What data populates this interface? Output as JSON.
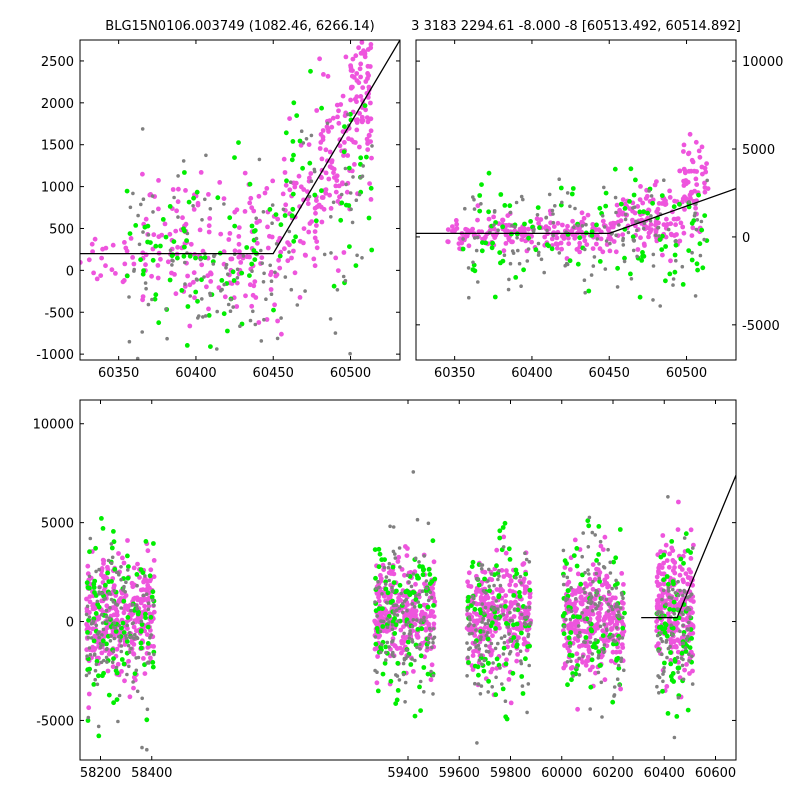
{
  "figure": {
    "title_left": "BLG15N0106.003749 (1082.46, 6266.14)",
    "title_right": "3 3183 2294.61 -8.000 -8 [60513.492, 60514.892]"
  },
  "colors": {
    "pink": "#ee55dd",
    "green": "#00ee00",
    "grey": "#808080",
    "model": "#000000"
  },
  "chart_data": [
    {
      "id": "top-left",
      "type": "scatter",
      "title": "BLG15N0106.003749 (1082.46, 6266.14)",
      "xlim": [
        60325,
        60532
      ],
      "ylim": [
        -1070,
        2750
      ],
      "xticks": [
        60350,
        60400,
        60450,
        60500
      ],
      "yticks": [
        -1000,
        -500,
        0,
        500,
        1000,
        1500,
        2000,
        2500
      ],
      "yaxis_side": "left",
      "series": [
        {
          "color": "pink",
          "segments": [
            {
              "x0": 60325,
              "x1": 60360,
              "ymean": 150,
              "sd": 180,
              "n": 25
            },
            {
              "x0": 60365,
              "x1": 60455,
              "ymean": 300,
              "sd": 400,
              "n": 170
            },
            {
              "x0": 60455,
              "x1": 60480,
              "ymean": 700,
              "sd": 420,
              "n": 60
            },
            {
              "x0": 60480,
              "x1": 60500,
              "ymean": 1300,
              "sd": 450,
              "n": 80
            },
            {
              "x0": 60500,
              "x1": 60514,
              "ymean": 2000,
              "sd": 450,
              "n": 90
            }
          ]
        },
        {
          "color": "green",
          "segments": [
            {
              "x0": 60355,
              "x1": 60455,
              "ymean": 200,
              "sd": 600,
              "n": 80
            },
            {
              "x0": 60455,
              "x1": 60514,
              "ymean": 900,
              "sd": 700,
              "n": 45
            }
          ]
        },
        {
          "color": "grey",
          "segments": [
            {
              "x0": 60355,
              "x1": 60455,
              "ymean": 0,
              "sd": 550,
              "n": 100
            },
            {
              "x0": 60455,
              "x1": 60514,
              "ymean": 700,
              "sd": 700,
              "n": 45
            }
          ]
        }
      ],
      "model": [
        [
          60325,
          200
        ],
        [
          60450,
          200
        ],
        [
          60532,
          2750
        ]
      ]
    },
    {
      "id": "top-right",
      "type": "scatter",
      "title": "3 3183 2294.61 -8.000 -8 [60513.492, 60514.892]",
      "xlim": [
        60325,
        60532
      ],
      "ylim": [
        -7000,
        11200
      ],
      "xticks": [
        60350,
        60400,
        60450,
        60500
      ],
      "yticks": [
        -5000,
        0,
        5000,
        10000
      ],
      "yaxis_side": "right",
      "series": [
        {
          "color": "pink",
          "segments": [
            {
              "x0": 60345,
              "x1": 60455,
              "ymean": 200,
              "sd": 500,
              "n": 220
            },
            {
              "x0": 60455,
              "x1": 60495,
              "ymean": 1000,
              "sd": 900,
              "n": 110
            },
            {
              "x0": 60495,
              "x1": 60514,
              "ymean": 2500,
              "sd": 1500,
              "n": 70
            }
          ]
        },
        {
          "color": "green",
          "segments": [
            {
              "x0": 60355,
              "x1": 60514,
              "ymean": 0,
              "sd": 1700,
              "n": 110
            }
          ]
        },
        {
          "color": "grey",
          "segments": [
            {
              "x0": 60355,
              "x1": 60514,
              "ymean": 0,
              "sd": 1500,
              "n": 140
            }
          ]
        }
      ],
      "model": [
        [
          60325,
          200
        ],
        [
          60450,
          200
        ],
        [
          60532,
          2750
        ]
      ]
    },
    {
      "id": "bottom",
      "type": "scatter",
      "xlim": [
        58120,
        60680
      ],
      "ylim": [
        -7000,
        11200
      ],
      "xticks": [
        58200,
        58400,
        59400,
        59600,
        59800,
        60000,
        60200,
        60400,
        60600
      ],
      "yticks": [
        -5000,
        0,
        5000,
        10000
      ],
      "yaxis_side": "left",
      "series": [
        {
          "color": "pink",
          "seasons": [
            {
              "x0": 58145,
              "x1": 58410,
              "ymean": 300,
              "sd": 1400,
              "n": 340
            },
            {
              "x0": 59270,
              "x1": 59505,
              "ymean": 300,
              "sd": 1400,
              "n": 300
            },
            {
              "x0": 59630,
              "x1": 59880,
              "ymean": 200,
              "sd": 1300,
              "n": 300
            },
            {
              "x0": 60005,
              "x1": 60245,
              "ymean": 300,
              "sd": 1400,
              "n": 300
            },
            {
              "x0": 60370,
              "x1": 60514,
              "ymean": 700,
              "sd": 1500,
              "n": 240
            }
          ]
        },
        {
          "color": "green",
          "seasons": [
            {
              "x0": 58145,
              "x1": 58410,
              "ymean": 0,
              "sd": 2300,
              "n": 110
            },
            {
              "x0": 59270,
              "x1": 59505,
              "ymean": 300,
              "sd": 2200,
              "n": 100
            },
            {
              "x0": 59630,
              "x1": 59880,
              "ymean": 0,
              "sd": 2000,
              "n": 90
            },
            {
              "x0": 60005,
              "x1": 60245,
              "ymean": 0,
              "sd": 2200,
              "n": 80
            },
            {
              "x0": 60370,
              "x1": 60514,
              "ymean": -500,
              "sd": 2200,
              "n": 70
            }
          ]
        },
        {
          "color": "grey",
          "seasons": [
            {
              "x0": 58145,
              "x1": 58410,
              "ymean": -300,
              "sd": 2000,
              "n": 140
            },
            {
              "x0": 59270,
              "x1": 59505,
              "ymean": 0,
              "sd": 2000,
              "n": 130
            },
            {
              "x0": 59630,
              "x1": 59880,
              "ymean": -200,
              "sd": 1900,
              "n": 120
            },
            {
              "x0": 60005,
              "x1": 60245,
              "ymean": 300,
              "sd": 2000,
              "n": 120
            },
            {
              "x0": 60370,
              "x1": 60514,
              "ymean": -300,
              "sd": 2000,
              "n": 80
            }
          ]
        }
      ],
      "model": [
        [
          60310,
          200
        ],
        [
          60450,
          200
        ],
        [
          60680,
          7400
        ]
      ]
    }
  ]
}
